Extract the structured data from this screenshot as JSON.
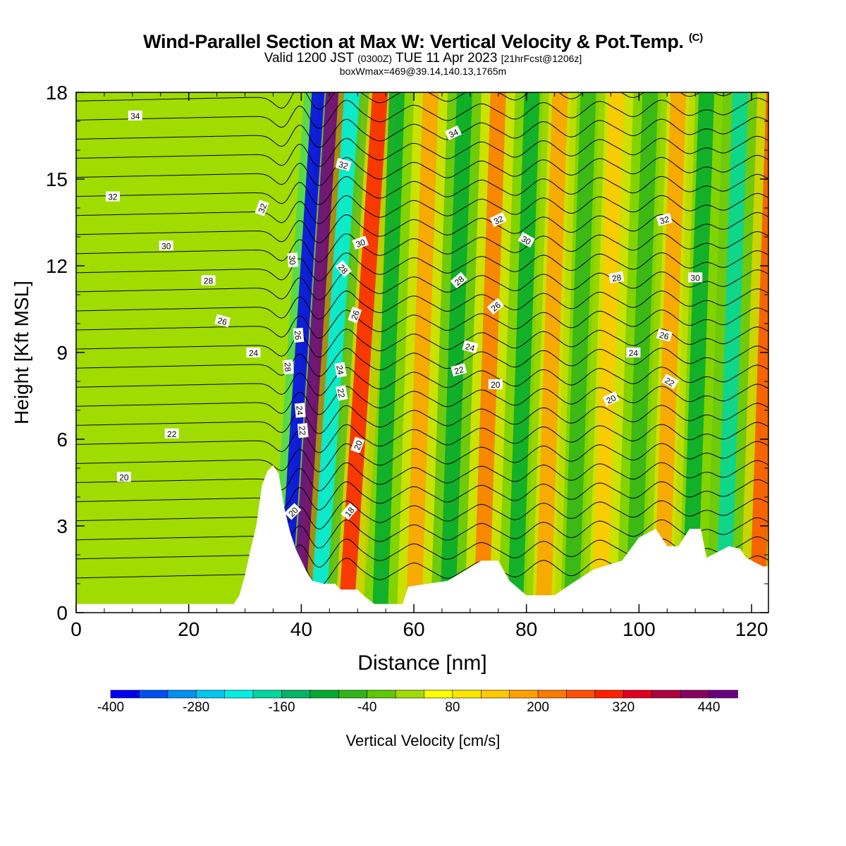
{
  "title": {
    "main": "Wind-Parallel Section at Max W: Vertical Velocity & Pot.Temp.",
    "copyright": "(C)",
    "valid_prefix": "Valid 1200 JST",
    "utc": "(0300Z)",
    "date": "TUE 11 Apr 2023",
    "forecast": "[21hrFcst@1206z]",
    "box": "boxWmax=469@39.14,140.13,1765m"
  },
  "chart_data": {
    "type": "heatmap",
    "xlabel": "Distance [nm]",
    "ylabel": "Height [Kft MSL]",
    "xlim": [
      0,
      123
    ],
    "ylim": [
      0,
      18
    ],
    "x_ticks": [
      0,
      20,
      40,
      60,
      80,
      100,
      120
    ],
    "y_ticks": [
      0,
      3,
      6,
      9,
      12,
      15,
      18
    ],
    "colorbar": {
      "label": "Vertical Velocity [cm/s]",
      "tick_labels": [
        -400,
        -280,
        -160,
        -40,
        80,
        200,
        320,
        440
      ],
      "colors": [
        "#0000f0",
        "#0050f0",
        "#0090f0",
        "#00c8f0",
        "#00f0e6",
        "#00d8a0",
        "#00b468",
        "#00aa30",
        "#30b418",
        "#60c800",
        "#a0dc00",
        "#ffff00",
        "#ffe600",
        "#ffc800",
        "#ffa000",
        "#ff7800",
        "#ff5000",
        "#ff1e00",
        "#e00020",
        "#b00040",
        "#880060",
        "#680080"
      ]
    },
    "wave_features": [
      {
        "x": 37,
        "w": -400
      },
      {
        "x": 39.5,
        "w": 440
      },
      {
        "x": 43,
        "w": -250
      },
      {
        "x": 48,
        "w": 260
      },
      {
        "x": 54,
        "w": -120
      },
      {
        "x": 60,
        "w": 160
      },
      {
        "x": 66,
        "w": -140
      },
      {
        "x": 72,
        "w": 180
      },
      {
        "x": 78,
        "w": -110
      },
      {
        "x": 83,
        "w": 150
      },
      {
        "x": 88,
        "w": -90
      },
      {
        "x": 93,
        "w": 130
      },
      {
        "x": 99,
        "w": -100
      },
      {
        "x": 104,
        "w": 140
      },
      {
        "x": 109,
        "w": -110
      },
      {
        "x": 115,
        "w": -200
      },
      {
        "x": 121,
        "w": 220
      }
    ],
    "terrain": [
      [
        0,
        0.3
      ],
      [
        28,
        0.3
      ],
      [
        29,
        0.6
      ],
      [
        30,
        1.3
      ],
      [
        31,
        2.2
      ],
      [
        32,
        3.0
      ],
      [
        33,
        4.4
      ],
      [
        34,
        4.9
      ],
      [
        35,
        5.1
      ],
      [
        36,
        4.8
      ],
      [
        37,
        3.6
      ],
      [
        38,
        2.8
      ],
      [
        39,
        2.2
      ],
      [
        40,
        1.8
      ],
      [
        41,
        1.4
      ],
      [
        42,
        1.1
      ],
      [
        44,
        1.0
      ],
      [
        46,
        1.0
      ],
      [
        47,
        0.8
      ],
      [
        50,
        0.8
      ],
      [
        51,
        0.6
      ],
      [
        53,
        0.3
      ],
      [
        58,
        0.3
      ],
      [
        59,
        0.9
      ],
      [
        66,
        1.1
      ],
      [
        72,
        1.8
      ],
      [
        75,
        1.8
      ],
      [
        77,
        1.1
      ],
      [
        80,
        0.6
      ],
      [
        85,
        0.6
      ],
      [
        88,
        1.0
      ],
      [
        92,
        1.5
      ],
      [
        97,
        1.8
      ],
      [
        100,
        2.6
      ],
      [
        103,
        2.9
      ],
      [
        105,
        2.3
      ],
      [
        107,
        2.3
      ],
      [
        109,
        2.9
      ],
      [
        111,
        2.9
      ],
      [
        112,
        1.9
      ],
      [
        116,
        2.3
      ],
      [
        118,
        2.2
      ],
      [
        119,
        1.9
      ],
      [
        122,
        1.6
      ],
      [
        123,
        1.6
      ]
    ],
    "isentrope_labels": [
      {
        "text": "34",
        "x": 10.5,
        "y": 17.2,
        "a": 0
      },
      {
        "text": "34",
        "x": 67,
        "y": 16.6,
        "a": 25
      },
      {
        "text": "32",
        "x": 6.5,
        "y": 14.4,
        "a": 0
      },
      {
        "text": "32",
        "x": 33,
        "y": 14.0,
        "a": 70
      },
      {
        "text": "32",
        "x": 47.5,
        "y": 15.5,
        "a": -15
      },
      {
        "text": "32",
        "x": 75,
        "y": 13.6,
        "a": 25
      },
      {
        "text": "32",
        "x": 104.5,
        "y": 13.6,
        "a": 15
      },
      {
        "text": "30",
        "x": 16,
        "y": 12.7,
        "a": 0
      },
      {
        "text": "30",
        "x": 38.5,
        "y": 12.2,
        "a": -85
      },
      {
        "text": "30",
        "x": 50.5,
        "y": 12.8,
        "a": 20
      },
      {
        "text": "30",
        "x": 80,
        "y": 12.9,
        "a": -30
      },
      {
        "text": "30",
        "x": 110,
        "y": 11.6,
        "a": 0
      },
      {
        "text": "28",
        "x": 23.5,
        "y": 11.5,
        "a": 0
      },
      {
        "text": "28",
        "x": 47.5,
        "y": 11.9,
        "a": -50
      },
      {
        "text": "28",
        "x": 68,
        "y": 11.5,
        "a": 40
      },
      {
        "text": "28",
        "x": 96,
        "y": 11.6,
        "a": 10
      },
      {
        "text": "26",
        "x": 26,
        "y": 10.1,
        "a": -15
      },
      {
        "text": "26",
        "x": 39.5,
        "y": 9.6,
        "a": -85
      },
      {
        "text": "26",
        "x": 49.5,
        "y": 10.3,
        "a": 70
      },
      {
        "text": "26",
        "x": 74.5,
        "y": 10.6,
        "a": 40
      },
      {
        "text": "26",
        "x": 104.5,
        "y": 9.6,
        "a": -15
      },
      {
        "text": "24",
        "x": 31.5,
        "y": 9.0,
        "a": 0
      },
      {
        "text": "24",
        "x": 47,
        "y": 8.4,
        "a": -80
      },
      {
        "text": "24",
        "x": 39.8,
        "y": 7.0,
        "a": -85
      },
      {
        "text": "24",
        "x": 70,
        "y": 9.2,
        "a": -15
      },
      {
        "text": "24",
        "x": 99,
        "y": 9.0,
        "a": 0
      },
      {
        "text": "28",
        "x": 37.7,
        "y": 8.5,
        "a": -85
      },
      {
        "text": "22",
        "x": 17,
        "y": 6.2,
        "a": 0
      },
      {
        "text": "22",
        "x": 40.3,
        "y": 6.3,
        "a": -85
      },
      {
        "text": "22",
        "x": 47.2,
        "y": 7.6,
        "a": -80
      },
      {
        "text": "22",
        "x": 68,
        "y": 8.4,
        "a": 15
      },
      {
        "text": "22",
        "x": 105.5,
        "y": 8.0,
        "a": -30
      },
      {
        "text": "20",
        "x": 8.5,
        "y": 4.7,
        "a": 0
      },
      {
        "text": "20",
        "x": 38.5,
        "y": 3.5,
        "a": 45
      },
      {
        "text": "20",
        "x": 50,
        "y": 5.8,
        "a": 70
      },
      {
        "text": "20",
        "x": 74.5,
        "y": 7.9,
        "a": 0
      },
      {
        "text": "20",
        "x": 95,
        "y": 7.4,
        "a": 25
      },
      {
        "text": "18",
        "x": 48.5,
        "y": 3.5,
        "a": 50
      }
    ]
  }
}
